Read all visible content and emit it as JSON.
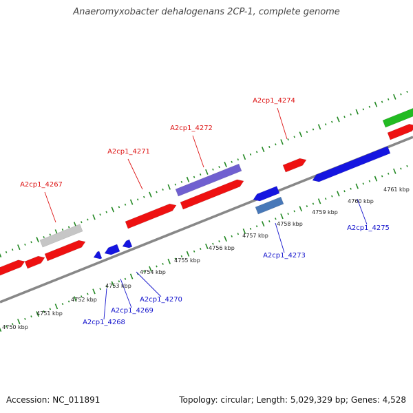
{
  "title": "Anaeromyxobacter dehalogenans 2CP-1, complete genome",
  "footer": {
    "accession": "Accession: NC_011891",
    "summary": "Topology: circular; Length: 5,029,329 bp; Genes: 4,528"
  },
  "colors": {
    "forward_gene": "#ee1111",
    "reverse_gene": "#1515e0",
    "forward_label": "#dd1111",
    "reverse_label": "#1111cc",
    "pseudo_gene": "#c6c6c6",
    "rna_gene": "#7060d0",
    "misc_feature": "#4878b8",
    "green_feature": "#22bb22",
    "tick_mark": "#228822",
    "backbone": "#888888"
  },
  "kbp_labels": [
    "4750 kbp",
    "4751 kbp",
    "4752 kbp",
    "4753 kbp",
    "4754 kbp",
    "4755 kbp",
    "4756 kbp",
    "4757 kbp",
    "4758 kbp",
    "4759 kbp",
    "4760 kbp",
    "4761 kbp"
  ],
  "gene_labels": [
    {
      "name": "A2cp1_4267",
      "strand": "forward"
    },
    {
      "name": "A2cp1_4271",
      "strand": "forward"
    },
    {
      "name": "A2cp1_4272",
      "strand": "forward"
    },
    {
      "name": "A2cp1_4274",
      "strand": "forward"
    },
    {
      "name": "A2cp1_4268",
      "strand": "reverse"
    },
    {
      "name": "A2cp1_4269",
      "strand": "reverse"
    },
    {
      "name": "A2cp1_4270",
      "strand": "reverse"
    },
    {
      "name": "A2cp1_4273",
      "strand": "reverse"
    },
    {
      "name": "A2cp1_4275",
      "strand": "reverse"
    }
  ]
}
